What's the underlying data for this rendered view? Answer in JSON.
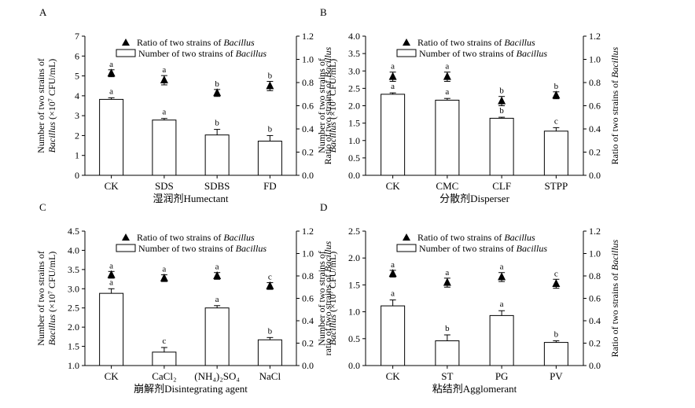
{
  "legend": {
    "ratio_prefix": "Ratio of two strains of ",
    "number_prefix": "Number of two strains of ",
    "genus": "Bacillus"
  },
  "chart_data": [
    {
      "type": "bar",
      "panel": "A",
      "xlabel": "湿润剂Humectant",
      "categories": [
        "CK",
        "SDS",
        "SDBS",
        "FD"
      ],
      "count": {
        "values": [
          3.82,
          2.78,
          2.03,
          1.72
        ],
        "errors": [
          0.08,
          0.08,
          0.28,
          0.28
        ],
        "letters": [
          "a",
          "a",
          "b",
          "b"
        ],
        "ylim": [
          0,
          7
        ],
        "ticks": [
          "0",
          "1",
          "2",
          "3",
          "4",
          "5",
          "6",
          "7"
        ]
      },
      "ratio": {
        "values": [
          0.88,
          0.82,
          0.71,
          0.77
        ],
        "errors": [
          0.03,
          0.04,
          0.03,
          0.04
        ],
        "letters": [
          "a",
          "a",
          "b",
          "b"
        ],
        "ylim": [
          0,
          1.2
        ],
        "ticks": [
          "0.0",
          "0.2",
          "0.4",
          "0.6",
          "0.8",
          "1.0",
          "1.2"
        ]
      },
      "ylabel_top": "Number  of two strains of",
      "ylabel_sub": "Bacillus (×10⁷ CFU/mL)",
      "ylabel_right_prefix": "Ratio of two strains of ",
      "ylabel_right_genus": "Bacillus"
    },
    {
      "type": "bar",
      "panel": "B",
      "xlabel": "分散剂Disperser",
      "categories": [
        "CK",
        "CMC",
        "CLF",
        "STPP"
      ],
      "count": {
        "values": [
          2.33,
          2.16,
          1.64,
          1.27
        ],
        "errors": [
          0.04,
          0.05,
          0.03,
          0.1
        ],
        "letters": [
          "a",
          "a",
          "b",
          "c"
        ],
        "ylim": [
          0,
          4
        ],
        "ticks": [
          "0.0",
          "0.5",
          "1.0",
          "1.5",
          "2.0",
          "2.5",
          "3.0",
          "3.5",
          "4.0"
        ]
      },
      "ratio": {
        "values": [
          0.85,
          0.85,
          0.64,
          0.69
        ],
        "errors": [
          0.04,
          0.04,
          0.04,
          0.03
        ],
        "letters": [
          "a",
          "a",
          "b",
          "b"
        ],
        "ylim": [
          0,
          1.2
        ],
        "ticks": [
          "0.0",
          "0.2",
          "0.4",
          "0.6",
          "0.8",
          "1.0",
          "1.2"
        ]
      },
      "ylabel_top": "Number  of two strains of",
      "ylabel_sub": "Bacillus (×10⁷ CFU/mL)",
      "ylabel_right_prefix": "Ratio of two strains of ",
      "ylabel_right_genus": "Bacillus"
    },
    {
      "type": "bar",
      "panel": "C",
      "xlabel": "崩解剂Disintegrating agent",
      "categories": [
        "CK",
        "CaCl₂",
        "(NH₄)₂SO₄",
        "NaCl"
      ],
      "count": {
        "values": [
          2.88,
          1.35,
          2.5,
          1.67
        ],
        "errors": [
          0.12,
          0.12,
          0.06,
          0.06
        ],
        "letters": [
          "a",
          "c",
          "a",
          "b"
        ],
        "ylim": [
          1,
          4.5
        ],
        "ticks": [
          "1.0",
          "1.5",
          "2.0",
          "2.5",
          "3.0",
          "3.5",
          "4.0",
          "4.5"
        ]
      },
      "ratio": {
        "values": [
          0.81,
          0.78,
          0.8,
          0.71
        ],
        "errors": [
          0.03,
          0.03,
          0.03,
          0.03
        ],
        "letters": [
          "a",
          "a",
          "a",
          "c"
        ],
        "ylim": [
          0,
          1.2
        ],
        "ticks": [
          "0.0",
          "0.2",
          "0.4",
          "0.6",
          "0.8",
          "1.0",
          "1.2"
        ]
      },
      "ylabel_top": "Number  of two strains of",
      "ylabel_sub": "Bacillus (×10⁷ CFU/mL)",
      "ylabel_right_prefix": "ratio of two strains of ",
      "ylabel_right_genus": "Bacillus"
    },
    {
      "type": "bar",
      "panel": "D",
      "xlabel": "粘结剂Agglomerant",
      "categories": [
        "CK",
        "ST",
        "PG",
        "PV"
      ],
      "count": {
        "values": [
          1.11,
          0.46,
          0.93,
          0.43
        ],
        "errors": [
          0.11,
          0.11,
          0.09,
          0.03
        ],
        "letters": [
          "a",
          "b",
          "a",
          "b"
        ],
        "ylim": [
          0,
          2.5
        ],
        "ticks": [
          "0.0",
          "0.5",
          "1.0",
          "1.5",
          "2.0",
          "2.5"
        ]
      },
      "ratio": {
        "values": [
          0.82,
          0.74,
          0.79,
          0.73
        ],
        "errors": [
          0.03,
          0.04,
          0.04,
          0.04
        ],
        "letters": [
          "a",
          "a",
          "a",
          "c"
        ],
        "ylim": [
          0,
          1.2
        ],
        "ticks": [
          "0.0",
          "0.2",
          "0.4",
          "0.6",
          "0.8",
          "1.0",
          "1.2"
        ]
      },
      "ylabel_top": "Number  of two strains of",
      "ylabel_sub": "Bacillus (×10⁷ CFU/mL)",
      "ylabel_right_prefix": "Ratio of two strains of ",
      "ylabel_right_genus": "Bacillus"
    }
  ]
}
